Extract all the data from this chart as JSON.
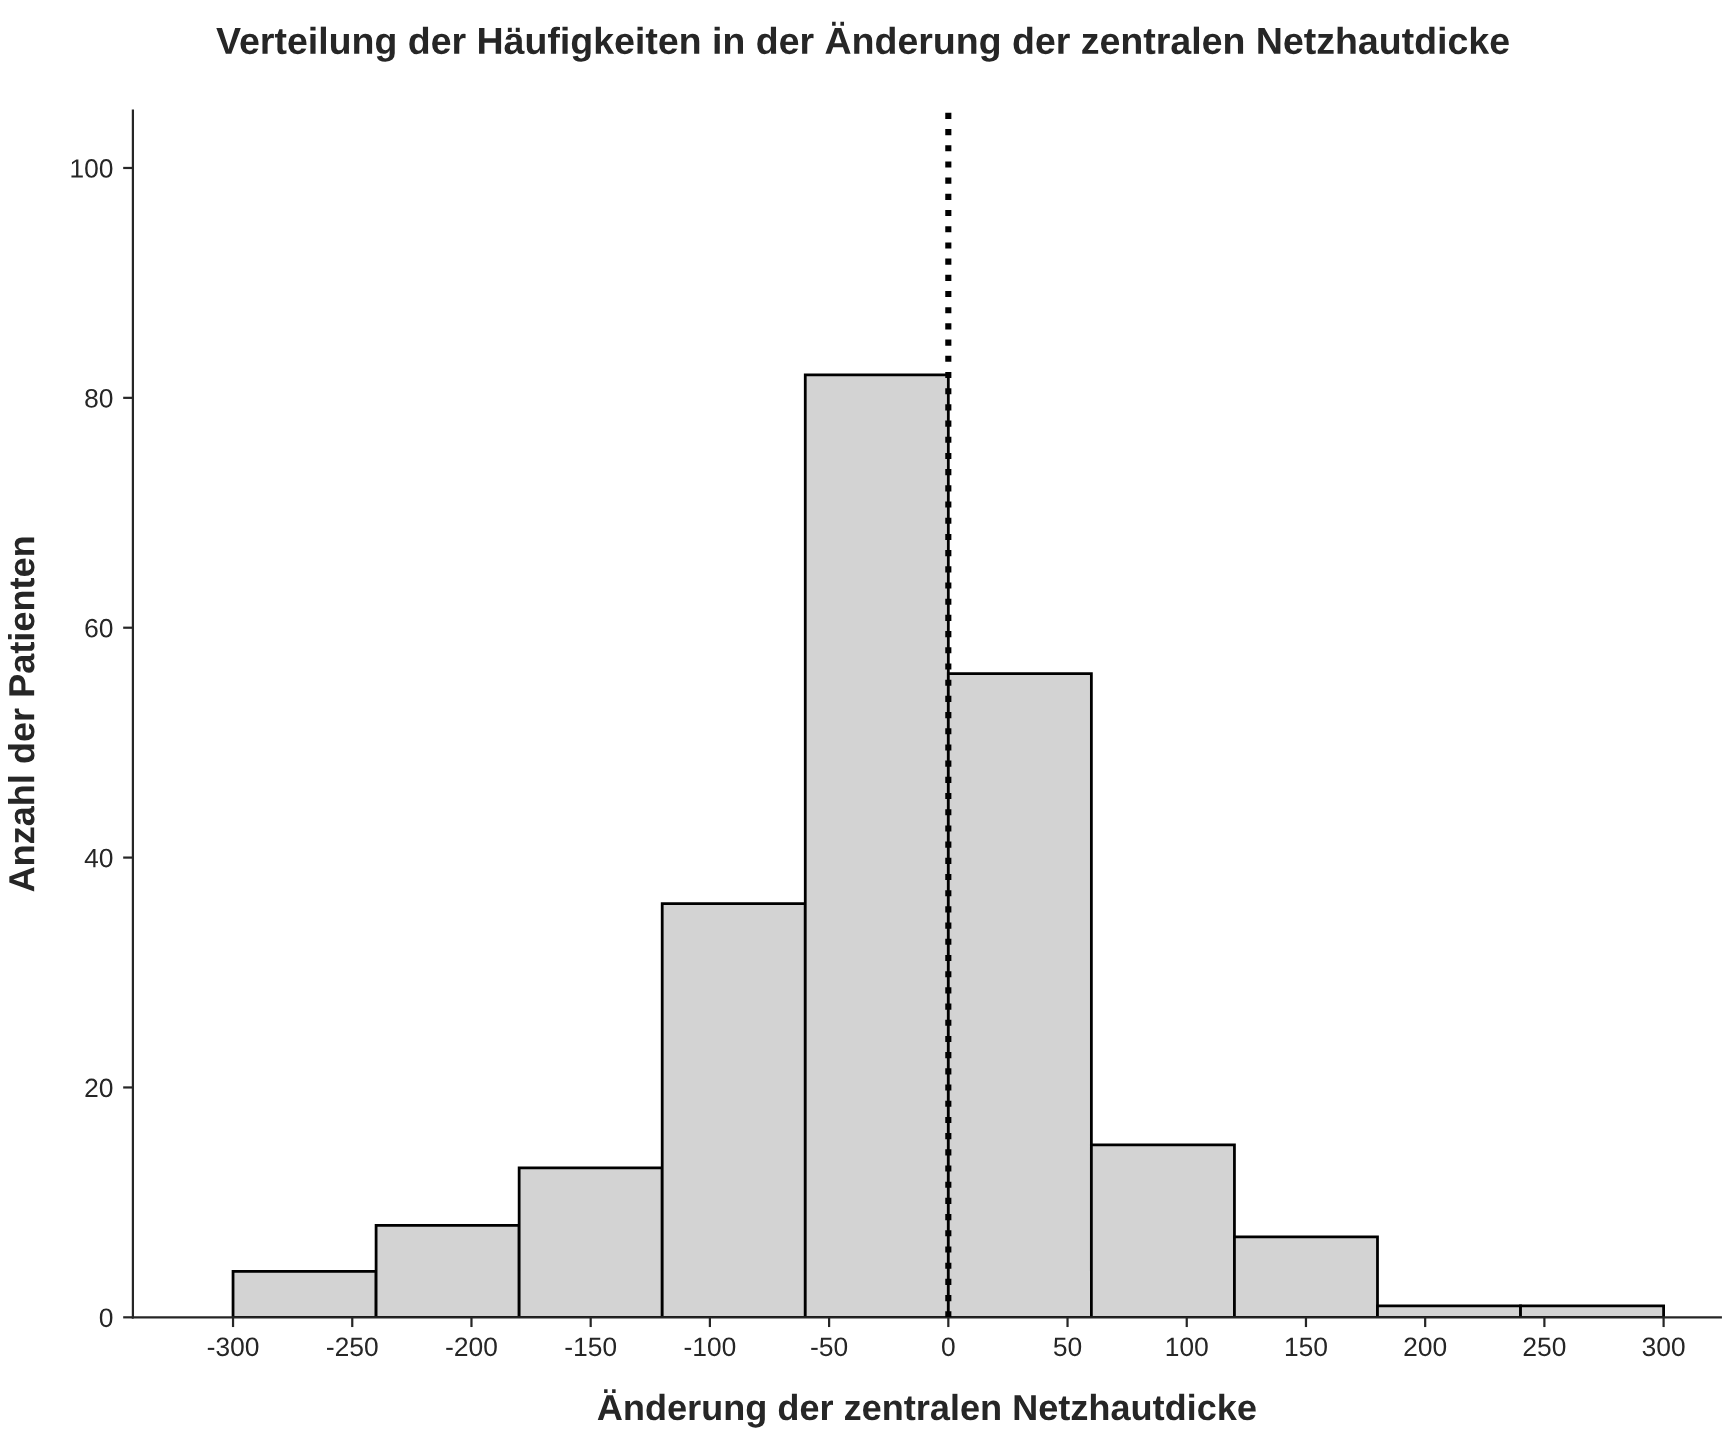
{
  "chart_data": {
    "type": "histogram",
    "title": "Verteilung der Häufigkeiten in der Änderung der zentralen Netzhautdicke",
    "xlabel": "Änderung der zentralen Netzhautdicke",
    "ylabel": "Anzahl der Patienten",
    "bins": [
      -300,
      -240,
      -180,
      -120,
      -60,
      0,
      60,
      120,
      180,
      240,
      300
    ],
    "values": [
      4,
      8,
      13,
      36,
      82,
      56,
      15,
      7,
      1,
      1
    ],
    "color": "#d3d3d3",
    "xlim": [
      -342,
      324
    ],
    "xticks": [
      -300,
      -250,
      -200,
      -150,
      -100,
      -50,
      0,
      50,
      100,
      150,
      200,
      250,
      300
    ],
    "ylim": [
      0,
      105
    ],
    "yticks": [
      0,
      20,
      40,
      60,
      80,
      100
    ],
    "ref_lines": [
      {
        "axis": "x",
        "value": 0,
        "label": null,
        "color": "#000000",
        "line_style": "dotted"
      }
    ],
    "grid": false,
    "legend": false
  }
}
